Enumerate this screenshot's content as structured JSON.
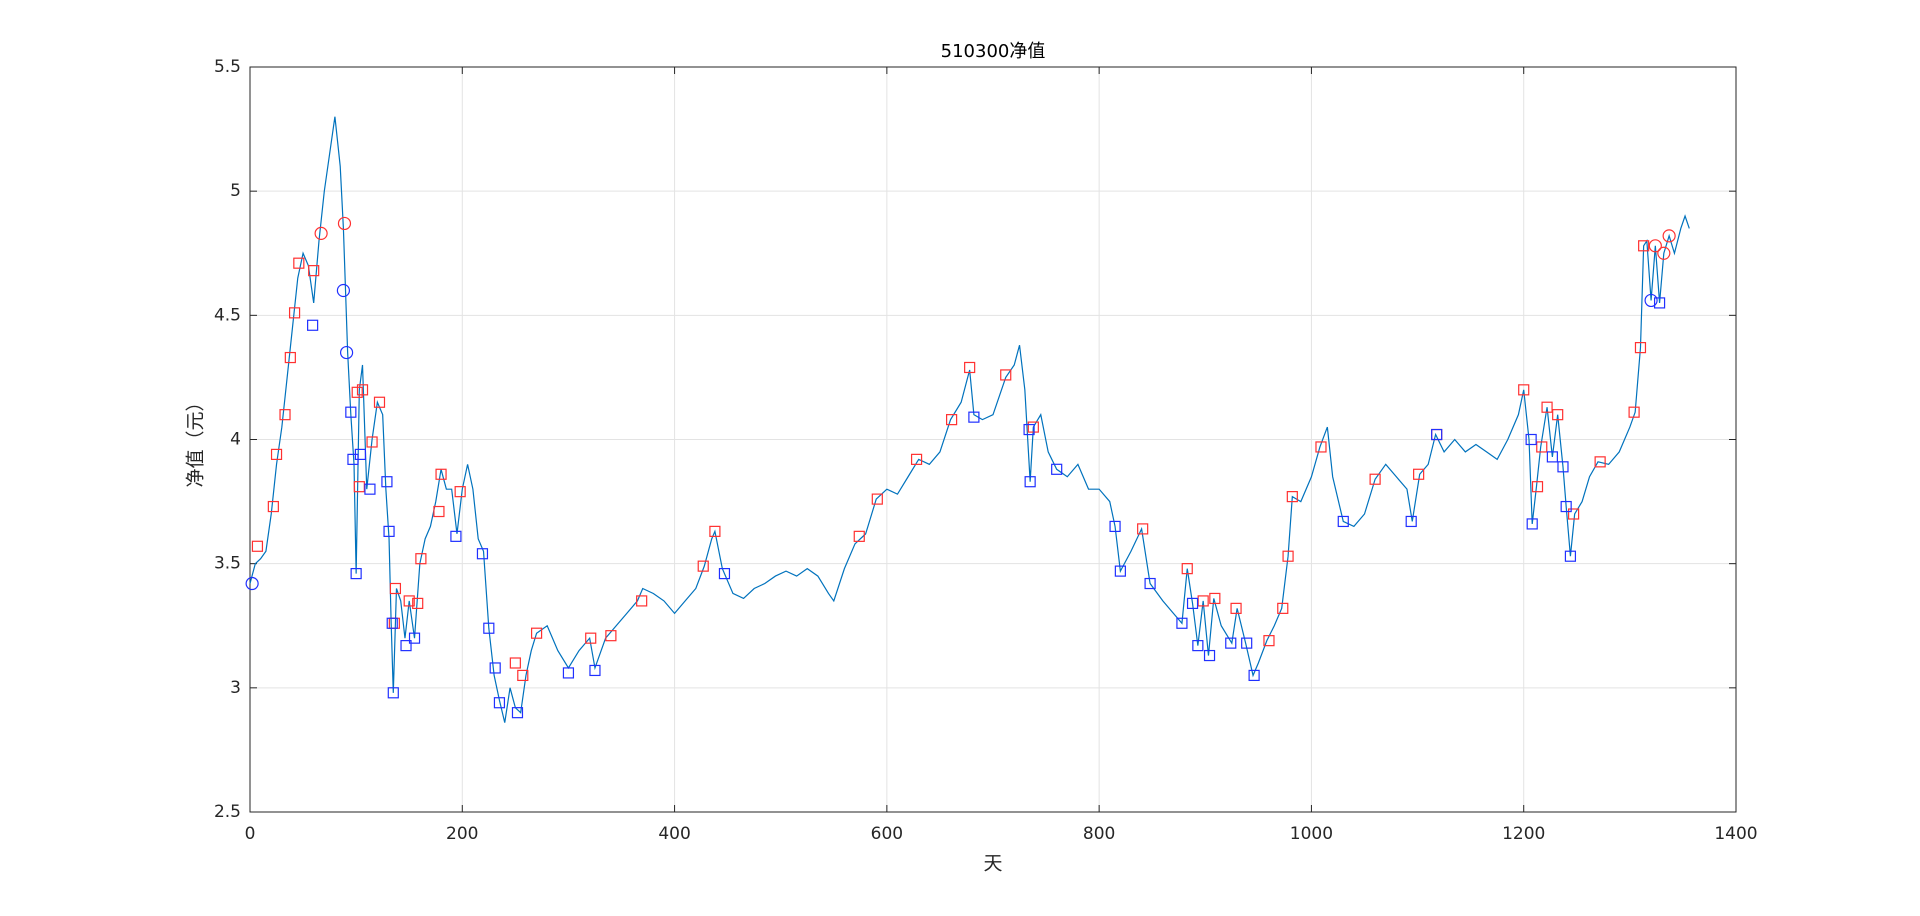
{
  "chart_data": {
    "type": "line",
    "title": "510300净值",
    "xlabel": "天",
    "ylabel": "净值（元）",
    "xlim": [
      0,
      1400
    ],
    "xticks": [
      0,
      200,
      400,
      600,
      800,
      1000,
      1200,
      1400
    ],
    "ylim": [
      2.5,
      5.5
    ],
    "yticks": [
      2.5,
      3,
      3.5,
      4,
      4.5,
      5,
      5.5
    ],
    "grid": true,
    "series": [
      {
        "type": "line",
        "color": "#0072bd",
        "x": [
          0,
          5,
          10,
          15,
          20,
          25,
          30,
          35,
          40,
          45,
          50,
          55,
          60,
          65,
          70,
          75,
          80,
          85,
          88,
          90,
          92,
          95,
          98,
          100,
          103,
          106,
          110,
          115,
          120,
          125,
          128,
          131,
          133,
          135,
          138,
          142,
          146,
          150,
          155,
          160,
          165,
          170,
          175,
          180,
          185,
          190,
          195,
          200,
          205,
          210,
          215,
          220,
          225,
          230,
          235,
          240,
          245,
          250,
          255,
          260,
          265,
          270,
          280,
          290,
          300,
          310,
          320,
          325,
          335,
          345,
          355,
          365,
          370,
          380,
          390,
          400,
          410,
          420,
          428,
          435,
          438,
          445,
          455,
          465,
          475,
          485,
          495,
          505,
          515,
          525,
          535,
          545,
          550,
          560,
          570,
          580,
          590,
          600,
          610,
          620,
          630,
          640,
          650,
          660,
          670,
          678,
          682,
          690,
          700,
          712,
          720,
          725,
          730,
          735,
          738,
          745,
          752,
          760,
          770,
          780,
          790,
          800,
          810,
          815,
          820,
          830,
          840,
          848,
          860,
          870,
          878,
          883,
          888,
          893,
          898,
          903,
          908,
          915,
          925,
          930,
          938,
          945,
          950,
          958,
          965,
          972,
          978,
          982,
          990,
          1000,
          1008,
          1015,
          1020,
          1030,
          1040,
          1050,
          1060,
          1070,
          1080,
          1090,
          1095,
          1102,
          1110,
          1117,
          1125,
          1135,
          1145,
          1155,
          1165,
          1175,
          1185,
          1195,
          1200,
          1205,
          1208,
          1212,
          1216,
          1222,
          1227,
          1232,
          1237,
          1240,
          1244,
          1248,
          1255,
          1262,
          1270,
          1280,
          1290,
          1300,
          1305,
          1310,
          1313,
          1316,
          1320,
          1324,
          1328,
          1332,
          1337,
          1342,
          1348,
          1352,
          1356
        ],
        "values": [
          3.42,
          3.5,
          3.52,
          3.55,
          3.7,
          3.9,
          4.05,
          4.25,
          4.45,
          4.65,
          4.75,
          4.7,
          4.55,
          4.8,
          5.0,
          5.15,
          5.3,
          5.1,
          4.85,
          4.6,
          4.35,
          4.1,
          3.9,
          3.46,
          4.2,
          4.3,
          3.8,
          4.0,
          4.15,
          4.1,
          3.8,
          3.6,
          3.26,
          2.98,
          3.4,
          3.35,
          3.2,
          3.35,
          3.2,
          3.5,
          3.6,
          3.65,
          3.75,
          3.88,
          3.8,
          3.8,
          3.62,
          3.8,
          3.9,
          3.8,
          3.6,
          3.55,
          3.24,
          3.05,
          2.95,
          2.86,
          3.0,
          2.92,
          2.9,
          3.05,
          3.15,
          3.22,
          3.25,
          3.15,
          3.08,
          3.15,
          3.2,
          3.08,
          3.2,
          3.25,
          3.3,
          3.35,
          3.4,
          3.38,
          3.35,
          3.3,
          3.35,
          3.4,
          3.49,
          3.6,
          3.63,
          3.48,
          3.38,
          3.36,
          3.4,
          3.42,
          3.45,
          3.47,
          3.45,
          3.48,
          3.45,
          3.38,
          3.35,
          3.48,
          3.58,
          3.62,
          3.76,
          3.8,
          3.78,
          3.85,
          3.92,
          3.9,
          3.95,
          4.08,
          4.15,
          4.28,
          4.1,
          4.08,
          4.1,
          4.25,
          4.3,
          4.38,
          4.2,
          3.83,
          4.05,
          4.1,
          3.95,
          3.88,
          3.85,
          3.9,
          3.8,
          3.8,
          3.75,
          3.65,
          3.47,
          3.55,
          3.64,
          3.42,
          3.35,
          3.3,
          3.26,
          3.48,
          3.34,
          3.17,
          3.35,
          3.13,
          3.36,
          3.25,
          3.18,
          3.32,
          3.18,
          3.05,
          3.1,
          3.19,
          3.25,
          3.32,
          3.53,
          3.77,
          3.75,
          3.85,
          3.97,
          4.05,
          3.85,
          3.67,
          3.65,
          3.7,
          3.84,
          3.9,
          3.85,
          3.8,
          3.67,
          3.86,
          3.9,
          4.02,
          3.95,
          4.0,
          3.95,
          3.98,
          3.95,
          3.92,
          4.0,
          4.1,
          4.2,
          4.0,
          3.66,
          3.81,
          3.97,
          4.13,
          3.93,
          4.1,
          3.89,
          3.73,
          3.53,
          3.7,
          3.75,
          3.85,
          3.91,
          3.9,
          3.95,
          4.05,
          4.11,
          4.37,
          4.78,
          4.8,
          4.56,
          4.78,
          4.55,
          4.75,
          4.82,
          4.75,
          4.85,
          4.9,
          4.85
        ]
      },
      {
        "type": "scatter",
        "marker": "square",
        "color": "#ff3030",
        "x": [
          7,
          22,
          25,
          33,
          38,
          42,
          46,
          60,
          101,
          106,
          103,
          115,
          122,
          136,
          137,
          150,
          158,
          161,
          178,
          180,
          198,
          250,
          257,
          270,
          321,
          340,
          369,
          427,
          438,
          574,
          591,
          628,
          661,
          678,
          712,
          738,
          841,
          883,
          898,
          909,
          929,
          960,
          973,
          978,
          982,
          1009,
          1060,
          1101,
          1118,
          1200,
          1213,
          1217,
          1222,
          1232,
          1247,
          1272,
          1304,
          1310,
          1313
        ],
        "values": [
          3.57,
          3.73,
          3.94,
          4.1,
          4.33,
          4.51,
          4.71,
          4.68,
          4.19,
          4.2,
          3.81,
          3.99,
          4.15,
          3.26,
          3.4,
          3.35,
          3.34,
          3.52,
          3.71,
          3.86,
          3.79,
          3.1,
          3.05,
          3.22,
          3.2,
          3.21,
          3.35,
          3.49,
          3.63,
          3.61,
          3.76,
          3.92,
          4.08,
          4.29,
          4.26,
          4.05,
          3.64,
          3.48,
          3.35,
          3.36,
          3.32,
          3.19,
          3.32,
          3.53,
          3.77,
          3.97,
          3.84,
          3.86,
          4.02,
          4.2,
          3.81,
          3.97,
          4.13,
          4.1,
          3.7,
          3.91,
          4.11,
          4.37,
          4.78
        ]
      },
      {
        "type": "scatter",
        "marker": "square",
        "color": "#2030ff",
        "x": [
          59,
          95,
          97,
          100,
          104,
          113,
          129,
          131,
          134,
          135,
          147,
          155,
          194,
          219,
          225,
          231,
          235,
          252,
          300,
          325,
          447,
          682,
          734,
          735,
          760,
          815,
          820,
          848,
          878,
          888,
          893,
          904,
          924,
          939,
          946,
          1030,
          1094,
          1118,
          1207,
          1208,
          1227,
          1237,
          1240,
          1244,
          1328
        ],
        "values": [
          4.46,
          4.11,
          3.92,
          3.46,
          3.94,
          3.8,
          3.83,
          3.63,
          3.26,
          2.98,
          3.17,
          3.2,
          3.61,
          3.54,
          3.24,
          3.08,
          2.94,
          2.9,
          3.06,
          3.07,
          3.46,
          4.09,
          4.04,
          3.83,
          3.88,
          3.65,
          3.47,
          3.42,
          3.26,
          3.34,
          3.17,
          3.13,
          3.18,
          3.18,
          3.05,
          3.67,
          3.67,
          4.02,
          4.0,
          3.66,
          3.93,
          3.89,
          3.73,
          3.53,
          4.55
        ]
      },
      {
        "type": "scatter",
        "marker": "circle",
        "color": "#ff3030",
        "x": [
          67,
          89,
          1324,
          1332,
          1337
        ],
        "values": [
          4.83,
          4.87,
          4.78,
          4.75,
          4.82
        ]
      },
      {
        "type": "scatter",
        "marker": "circle",
        "color": "#2030ff",
        "x": [
          2,
          88,
          91,
          1320
        ],
        "values": [
          3.42,
          4.6,
          4.35,
          4.56
        ]
      }
    ]
  }
}
